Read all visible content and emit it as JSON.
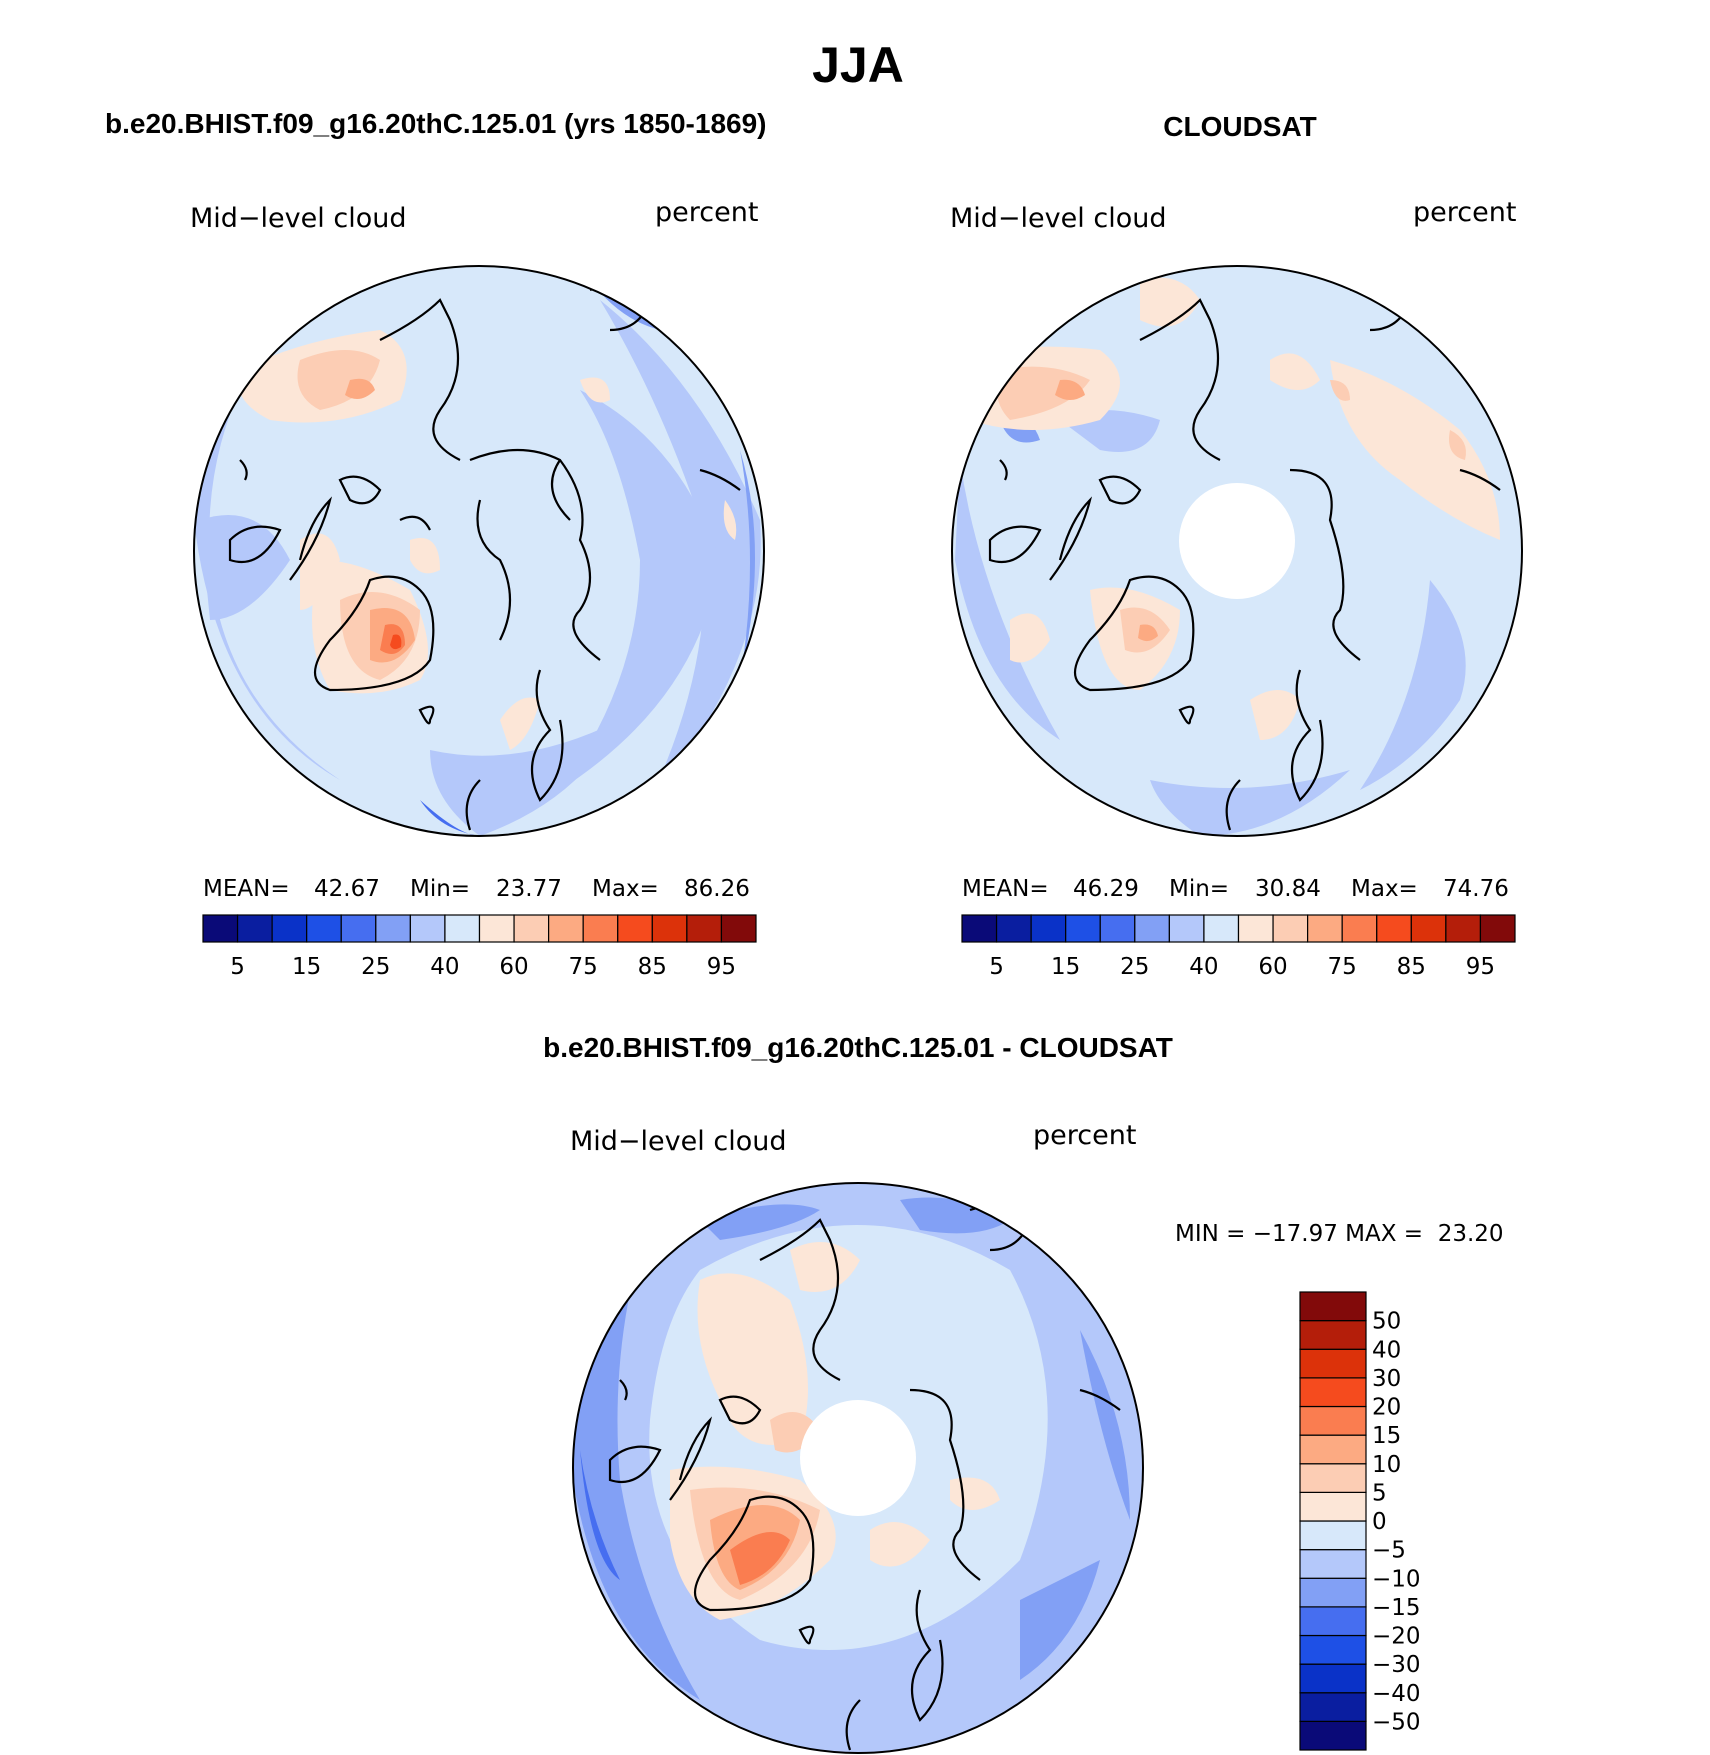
{
  "title": "JJA",
  "panels": [
    {
      "heading": "b.e20.BHIST.f09_g16.20thC.125.01 (yrs 1850-1869)",
      "variable": "Mid−level cloud",
      "units": "percent",
      "stats": {
        "mean_label": "MEAN=",
        "mean": "42.67",
        "min_label": "Min=",
        "min": "23.77",
        "max_label": "Max=",
        "max": "86.26"
      },
      "has_polar_gap": false
    },
    {
      "heading": "CLOUDSAT",
      "variable": "Mid−level cloud",
      "units": "percent",
      "stats": {
        "mean_label": "MEAN=",
        "mean": "46.29",
        "min_label": "Min=",
        "min": "30.84",
        "max_label": "Max=",
        "max": "74.76"
      },
      "has_polar_gap": true
    },
    {
      "heading": "b.e20.BHIST.f09_g16.20thC.125.01 - CLOUDSAT",
      "variable": "Mid−level cloud",
      "units": "percent",
      "stats_text": "MIN = −17.97 MAX =  23.20",
      "has_polar_gap": true
    }
  ],
  "colorbar_abs": {
    "colors": [
      "#0a0a78",
      "#0a1ea0",
      "#0a32c8",
      "#1e50e6",
      "#466ef0",
      "#82a0f5",
      "#b4c8fa",
      "#d7e8fa",
      "#fce6d7",
      "#fccdb4",
      "#fcaa82",
      "#fa7d50",
      "#f54b1e",
      "#dc320a",
      "#b41e0a",
      "#820a0a"
    ],
    "labels": [
      "5",
      "15",
      "25",
      "40",
      "60",
      "75",
      "85",
      "95"
    ]
  },
  "colorbar_diff": {
    "colors": [
      "#0a0a78",
      "#0a1ea0",
      "#0a32c8",
      "#1e50e6",
      "#466ef0",
      "#82a0f5",
      "#b4c8fa",
      "#d7e8fa",
      "#fce6d7",
      "#fccdb4",
      "#fcaa82",
      "#fa7d50",
      "#f54b1e",
      "#dc320a",
      "#b41e0a",
      "#820a0a"
    ],
    "labels": [
      "50",
      "40",
      "30",
      "20",
      "15",
      "10",
      "5",
      "0",
      "−5",
      "−10",
      "−15",
      "−20",
      "−30",
      "−40",
      "−50"
    ]
  }
}
